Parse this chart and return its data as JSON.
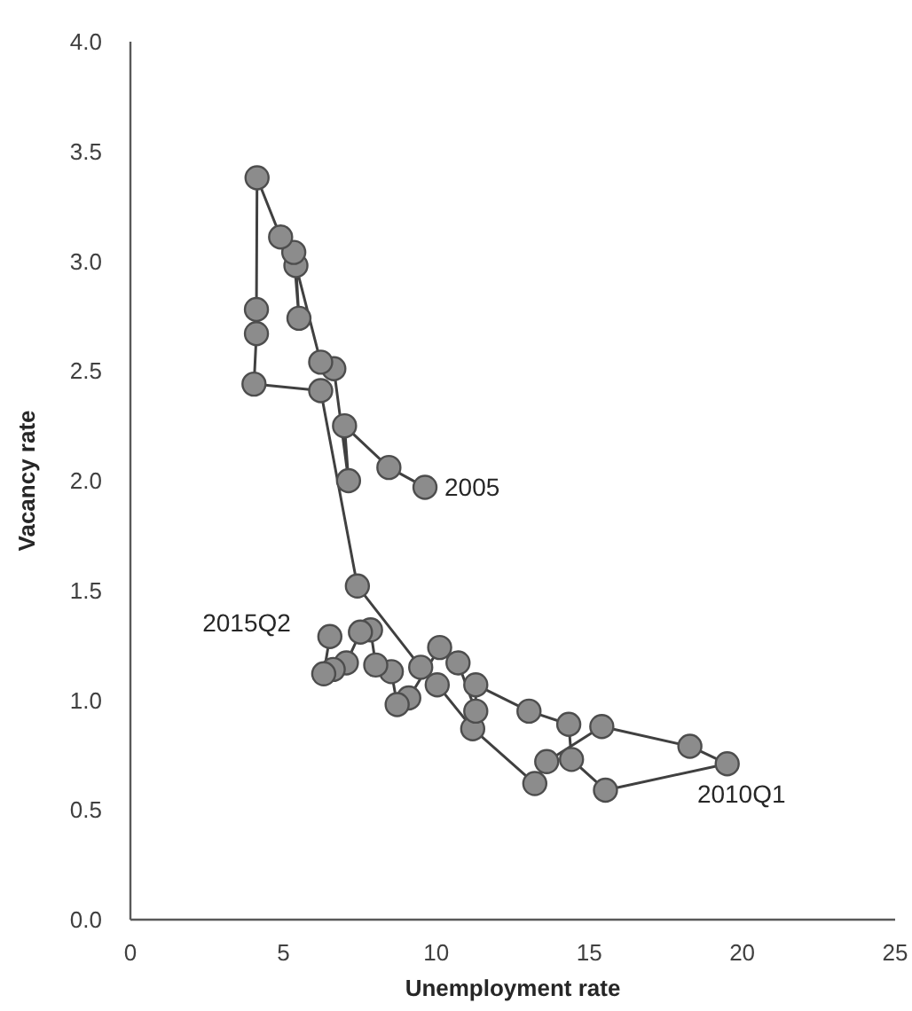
{
  "chart_data": {
    "type": "line",
    "xlabel": "Unemployment rate",
    "ylabel": "Vacancy rate",
    "xlim": [
      0,
      25
    ],
    "xticks": [
      0,
      5,
      10,
      15,
      20,
      25
    ],
    "ylim": [
      0,
      4
    ],
    "yticks": [
      {
        "value": 0,
        "label": "0.0"
      },
      0.5,
      {
        "value": 1,
        "label": "1.0"
      },
      1.5,
      {
        "value": 2,
        "label": "2.0"
      },
      2.5,
      {
        "value": 3,
        "label": "3.0"
      },
      3.5,
      {
        "value": 4,
        "label": "4.0"
      }
    ],
    "grid": false,
    "marker": "circle",
    "line_style": "solid",
    "series": [
      {
        "color": "#8c8c8c",
        "x": [
          9.63,
          8.45,
          7.0,
          7.13,
          6.65,
          6.22,
          5.41,
          5.51,
          5.34,
          4.91,
          4.14,
          4.12,
          4.12,
          4.04,
          6.22,
          7.42,
          9.49,
          10.03,
          11.19,
          13.22,
          13.61,
          15.41,
          18.29,
          19.51,
          15.53,
          14.42,
          14.33,
          13.03,
          11.29,
          11.29,
          10.71,
          10.11,
          9.1,
          8.72,
          8.53,
          8.02,
          7.85,
          7.52,
          7.06,
          6.63,
          6.32,
          6.52
        ],
        "values": [
          1.97,
          2.06,
          2.25,
          2.0,
          2.51,
          2.54,
          2.98,
          2.74,
          3.04,
          3.11,
          3.38,
          2.78,
          2.67,
          2.44,
          2.41,
          1.52,
          1.15,
          1.07,
          0.87,
          0.62,
          0.72,
          0.88,
          0.79,
          0.71,
          0.59,
          0.73,
          0.89,
          0.95,
          1.07,
          0.95,
          1.17,
          1.24,
          1.01,
          0.98,
          1.13,
          1.16,
          1.32,
          1.31,
          1.17,
          1.14,
          1.12,
          1.29
        ]
      }
    ],
    "annotations": [
      {
        "text": "2005",
        "x": 9.63,
        "y": 1.97
      },
      {
        "text": "2010Q1",
        "x": 19.51,
        "y": 0.71
      },
      {
        "text": "2015Q2",
        "x": 6.52,
        "y": 1.29
      }
    ]
  }
}
